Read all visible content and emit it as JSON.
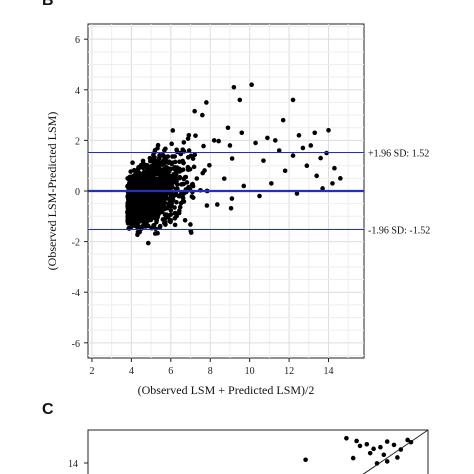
{
  "chart_data": [
    {
      "type": "scatter",
      "panel_label": "B",
      "title": "",
      "xlabel": "(Observed LSM + Predicted LSM)/2",
      "ylabel": "(Observed LSM-Predicted LSM)",
      "xlim": [
        1.8,
        15.8
      ],
      "ylim": [
        -6.6,
        6.6
      ],
      "xticks": [
        2,
        4,
        6,
        8,
        10,
        12,
        14
      ],
      "yticks": [
        -6,
        -4,
        -2,
        0,
        2,
        4,
        6
      ],
      "grid": true,
      "reference_lines": [
        {
          "name": "mean",
          "y": 0,
          "label": ""
        },
        {
          "name": "upper",
          "y": 1.52,
          "label": "+1.96 SD: 1.52"
        },
        {
          "name": "lower",
          "y": -1.52,
          "label": "-1.96 SD: -1.52"
        }
      ],
      "point_color": "#000000",
      "line_color": "#2230c0",
      "outliers": [
        [
          10.1,
          4.2
        ],
        [
          9.2,
          4.1
        ],
        [
          9.5,
          3.6
        ],
        [
          12.2,
          3.6
        ],
        [
          7.6,
          3.0
        ],
        [
          11.7,
          2.8
        ],
        [
          14.0,
          2.4
        ],
        [
          13.3,
          2.3
        ],
        [
          12.5,
          2.2
        ],
        [
          10.9,
          2.1
        ],
        [
          11.3,
          2.0
        ],
        [
          10.3,
          1.9
        ],
        [
          13.1,
          1.8
        ],
        [
          12.7,
          1.7
        ],
        [
          9.0,
          1.8
        ],
        [
          8.2,
          2.0
        ],
        [
          9.6,
          2.3
        ],
        [
          8.9,
          2.5
        ],
        [
          13.6,
          1.3
        ],
        [
          14.3,
          0.9
        ],
        [
          14.6,
          0.5
        ],
        [
          14.2,
          0.3
        ],
        [
          13.7,
          0.1
        ],
        [
          13.4,
          0.6
        ],
        [
          12.9,
          1.0
        ],
        [
          12.2,
          1.4
        ],
        [
          11.8,
          0.8
        ],
        [
          11.1,
          0.3
        ],
        [
          10.5,
          -0.2
        ],
        [
          9.7,
          0.2
        ],
        [
          9.1,
          -0.3
        ],
        [
          12.4,
          -0.1
        ],
        [
          13.9,
          1.5
        ],
        [
          11.5,
          1.6
        ],
        [
          10.7,
          1.2
        ]
      ],
      "cloud": {
        "n": 1400,
        "x_center": 5.0,
        "x_spread": 1.2,
        "slope": 0.25,
        "y_spread": 0.55,
        "seed": 7
      }
    },
    {
      "type": "scatter",
      "panel_label": "C",
      "title": "",
      "xlabel": "",
      "ylabel": "",
      "yticks_visible": [
        "14"
      ],
      "diagonal": true,
      "points_visible": [
        [
          0.76,
          0.1
        ],
        [
          0.79,
          0.18
        ],
        [
          0.8,
          0.33
        ],
        [
          0.82,
          0.28
        ],
        [
          0.84,
          0.42
        ],
        [
          0.86,
          0.37
        ],
        [
          0.88,
          0.2
        ],
        [
          0.9,
          0.3
        ],
        [
          0.92,
          0.44
        ],
        [
          0.94,
          0.15
        ],
        [
          0.83,
          0.55
        ],
        [
          0.87,
          0.6
        ],
        [
          0.95,
          0.22
        ],
        [
          0.78,
          0.7
        ],
        [
          0.64,
          0.75
        ],
        [
          0.88,
          0.8
        ],
        [
          0.91,
          0.68
        ],
        [
          0.85,
          0.86
        ]
      ]
    }
  ]
}
